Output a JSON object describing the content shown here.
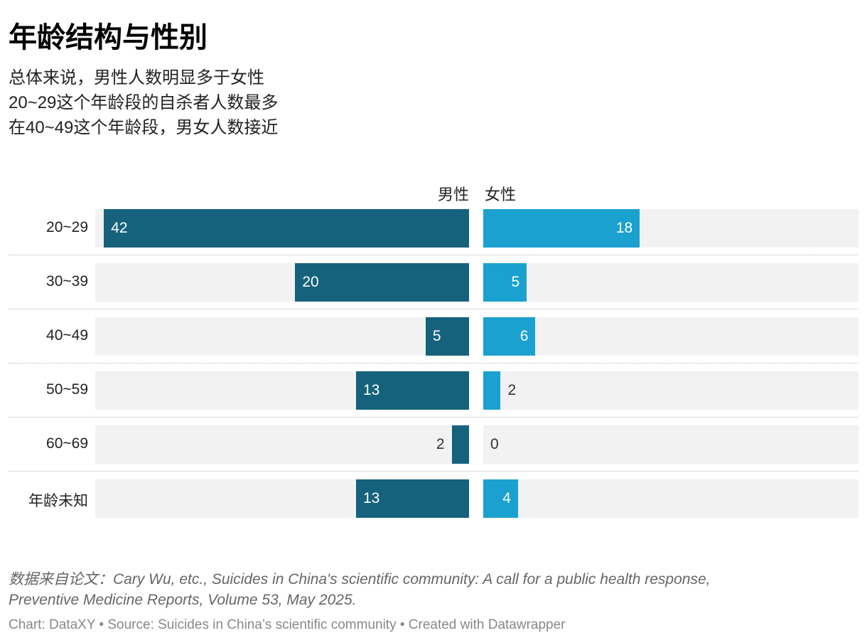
{
  "title": "年龄结构与性别",
  "subtitle": [
    "总体来说，男性人数明显多于女性",
    "20~29这个年龄段的自杀者人数最多",
    "在40~49这个年龄段，男女人数接近"
  ],
  "note": [
    "数据来自论文：Cary Wu, etc., Suicides in China's scientific community: A call for a public health response,",
    "Preventive Medicine Reports, Volume 53, May 2025."
  ],
  "footer": "Chart: DataXY • Source: Suicides in China’s scientific community • Created with Datawrapper",
  "colors": {
    "male": "#16627c",
    "female": "#1ba1cf",
    "background": "#f2f2f2"
  },
  "chart_data": {
    "type": "bar",
    "orientation": "horizontal-split",
    "categories": [
      "20~29",
      "30~39",
      "40~49",
      "50~59",
      "60~69",
      "年龄未知"
    ],
    "series": [
      {
        "name": "男性",
        "values": [
          42,
          20,
          5,
          13,
          2,
          13
        ]
      },
      {
        "name": "女性",
        "values": [
          18,
          5,
          6,
          2,
          0,
          4
        ]
      }
    ],
    "xlim": [
      0,
      43
    ]
  }
}
